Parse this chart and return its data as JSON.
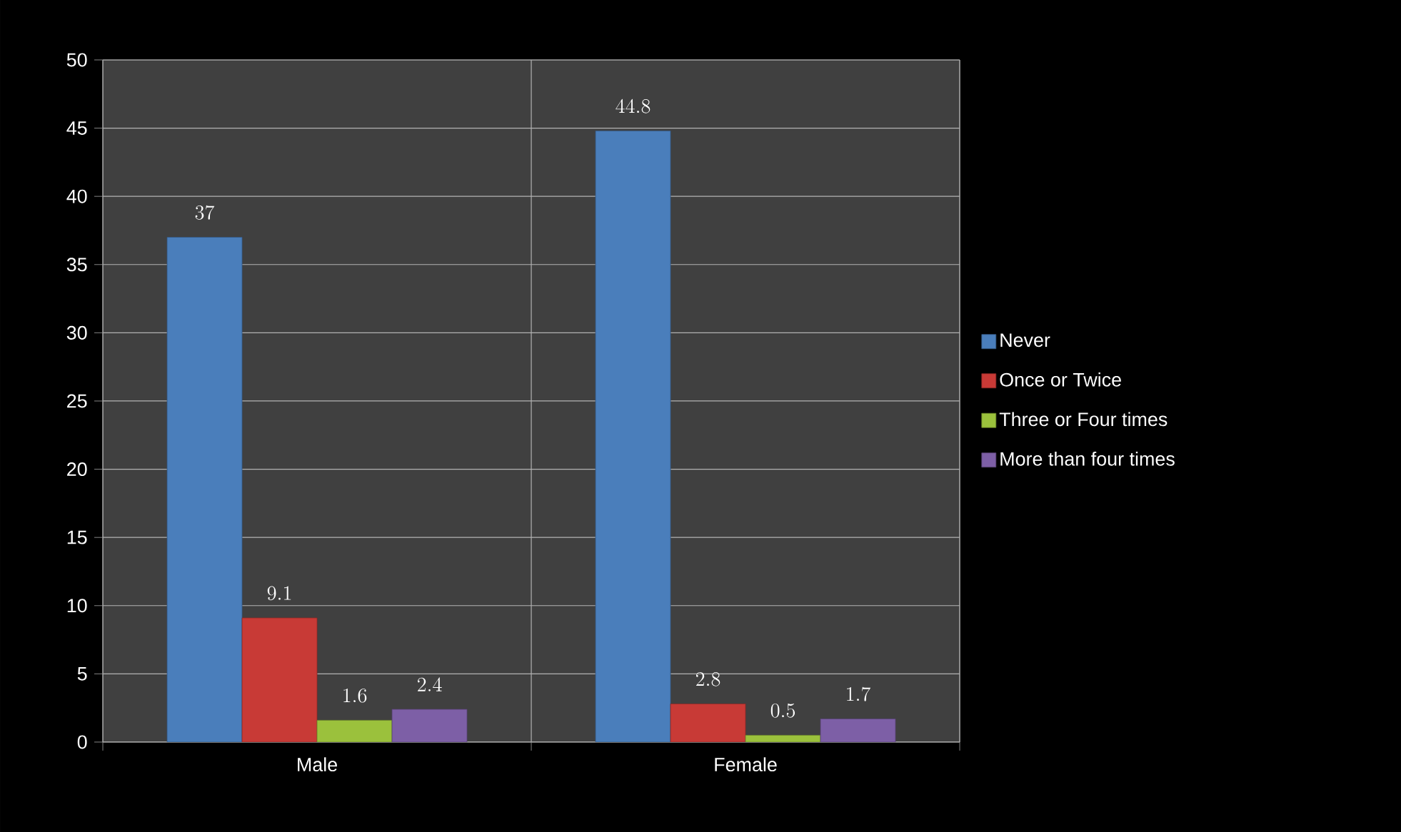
{
  "chart_data": {
    "type": "bar",
    "categories": [
      "Male",
      "Female"
    ],
    "series": [
      {
        "name": "Never",
        "color": "#4a7ebb",
        "values": [
          37,
          44.8
        ]
      },
      {
        "name": "Once or Twice",
        "color": "#c83a36",
        "values": [
          9.1,
          2.8
        ]
      },
      {
        "name": "Three or Four times",
        "color": "#9bc13c",
        "values": [
          1.6,
          0.5
        ]
      },
      {
        "name": "More than four times",
        "color": "#7d5fa6",
        "values": [
          2.4,
          1.7
        ]
      }
    ],
    "ylim": [
      0,
      50
    ],
    "yticks": [
      0,
      5,
      10,
      15,
      20,
      25,
      30,
      35,
      40,
      45,
      50
    ],
    "grid": true,
    "legend": "right",
    "data_labels": true
  }
}
